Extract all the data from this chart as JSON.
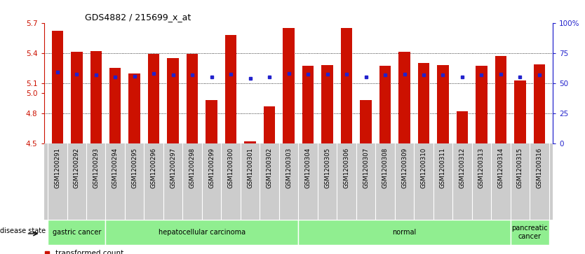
{
  "title": "GDS4882 / 215699_x_at",
  "samples": [
    "GSM1200291",
    "GSM1200292",
    "GSM1200293",
    "GSM1200294",
    "GSM1200295",
    "GSM1200296",
    "GSM1200297",
    "GSM1200298",
    "GSM1200299",
    "GSM1200300",
    "GSM1200301",
    "GSM1200302",
    "GSM1200303",
    "GSM1200304",
    "GSM1200305",
    "GSM1200306",
    "GSM1200307",
    "GSM1200308",
    "GSM1200309",
    "GSM1200310",
    "GSM1200311",
    "GSM1200312",
    "GSM1200313",
    "GSM1200314",
    "GSM1200315",
    "GSM1200316"
  ],
  "red_values": [
    5.62,
    5.41,
    5.42,
    5.25,
    5.2,
    5.39,
    5.35,
    5.39,
    4.93,
    5.58,
    4.52,
    4.87,
    5.65,
    5.27,
    5.28,
    5.65,
    4.93,
    5.27,
    5.41,
    5.3,
    5.28,
    4.82,
    5.27,
    5.37,
    5.13,
    5.29
  ],
  "blue_values": [
    5.21,
    5.19,
    5.18,
    5.16,
    5.17,
    5.2,
    5.18,
    5.18,
    5.16,
    5.19,
    5.15,
    5.16,
    5.2,
    5.19,
    5.19,
    5.19,
    5.16,
    5.18,
    5.19,
    5.18,
    5.18,
    5.16,
    5.18,
    5.19,
    5.16,
    5.18
  ],
  "disease_groups": [
    {
      "label": "gastric cancer",
      "start": 0,
      "end": 3
    },
    {
      "label": "hepatocellular carcinoma",
      "start": 3,
      "end": 13
    },
    {
      "label": "normal",
      "start": 13,
      "end": 24
    },
    {
      "label": "pancreatic\ncancer",
      "start": 24,
      "end": 26
    }
  ],
  "ymin": 4.5,
  "ymax": 5.7,
  "bar_color": "#CC1100",
  "blue_color": "#2222CC",
  "bg_color": "#FFFFFF",
  "tick_bg": "#CCCCCC",
  "group_bg": "#90EE90",
  "label_fontsize": 6.5,
  "bar_width": 0.6
}
